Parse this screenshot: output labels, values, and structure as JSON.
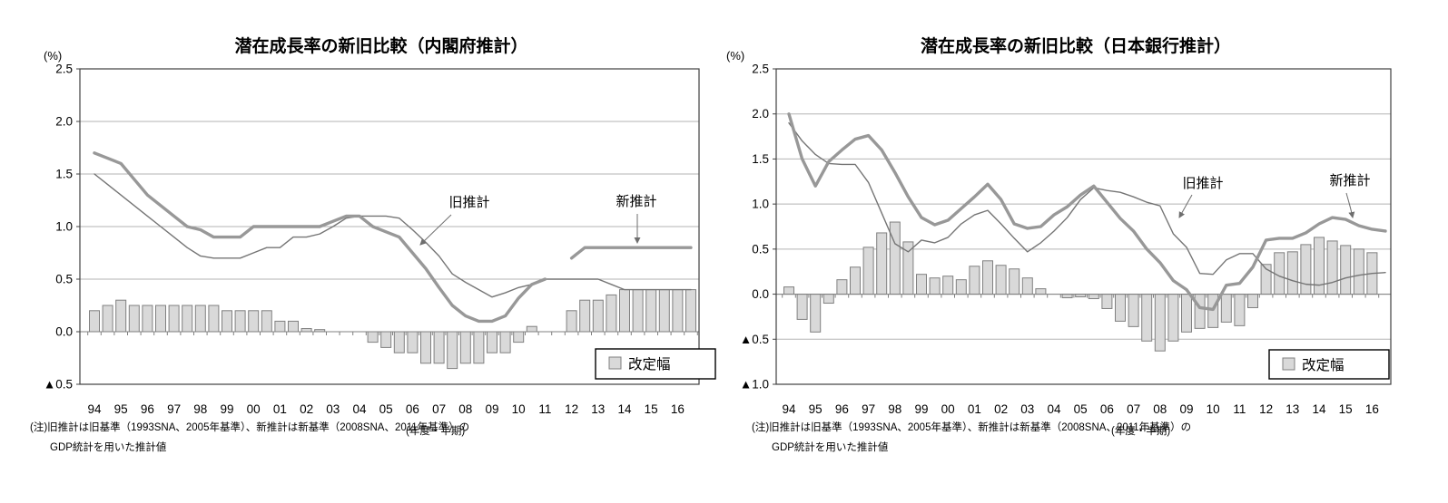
{
  "page": {
    "background": "#ffffff"
  },
  "chart_data": [
    {
      "type": "bar",
      "subtype": "combo-bar-line",
      "title": "潜在成長率の新旧比較（内閣府推計）",
      "unit_label": "(%)",
      "axis_note": "(年度・半期)",
      "note_line1": "(注)旧推計は旧基準（1993SNA、2005年基準）、新推計は新基準（2008SNA、2011年基準）の",
      "note_line2": "GDP統計を用いた推計値",
      "legend": {
        "label": "改定幅",
        "position": "bottom-right"
      },
      "ylim": [
        -0.5,
        2.5
      ],
      "ytick_step": 0.5,
      "ytick_labels": [
        "2.5",
        "2.0",
        "1.5",
        "1.0",
        "0.5",
        "0.0",
        "▲0.5"
      ],
      "x_year_labels": [
        "94",
        "95",
        "96",
        "97",
        "98",
        "99",
        "00",
        "01",
        "02",
        "03",
        "04",
        "05",
        "06",
        "07",
        "08",
        "09",
        "10",
        "11",
        "12",
        "13",
        "14",
        "15",
        "16"
      ],
      "periods_per_year": 2,
      "grid": true,
      "annotations": [
        {
          "label": "旧推計",
          "points_to": "old-estimate-line"
        },
        {
          "label": "新推計",
          "points_to": "new-estimate-line"
        }
      ],
      "series": [
        {
          "name": "改定幅",
          "type": "bar",
          "values": [
            0.2,
            0.25,
            0.3,
            0.25,
            0.25,
            0.25,
            0.25,
            0.25,
            0.25,
            0.25,
            0.2,
            0.2,
            0.2,
            0.2,
            0.1,
            0.1,
            0.03,
            0.02,
            0,
            0,
            0,
            -0.1,
            -0.15,
            -0.2,
            -0.2,
            -0.3,
            -0.3,
            -0.35,
            -0.3,
            -0.3,
            -0.2,
            -0.2,
            -0.1,
            0.05,
            0,
            0,
            0.2,
            0.3,
            0.3,
            0.35,
            0.4,
            0.4,
            0.4,
            0.4,
            0.4,
            0.4
          ]
        },
        {
          "name": "旧推計",
          "type": "line",
          "style": "thin",
          "values": [
            1.5,
            1.4,
            1.3,
            1.2,
            1.1,
            1.0,
            0.9,
            0.8,
            0.72,
            0.7,
            0.7,
            0.7,
            0.75,
            0.8,
            0.8,
            0.9,
            0.9,
            0.93,
            1.0,
            1.08,
            1.1,
            1.1,
            1.1,
            1.08,
            0.97,
            0.85,
            0.72,
            0.55,
            0.47,
            0.4,
            0.33,
            0.37,
            0.42,
            0.45,
            0.5,
            0.5,
            0.5,
            0.5,
            0.5,
            0.45,
            0.4,
            0.4,
            0.4,
            0.4,
            0.4,
            0.4
          ]
        },
        {
          "name": "新推計",
          "type": "line",
          "style": "thick",
          "values": [
            1.7,
            1.65,
            1.6,
            1.45,
            1.3,
            1.2,
            1.1,
            1.0,
            0.97,
            0.9,
            0.9,
            0.9,
            1.0,
            1.0,
            1.0,
            1.0,
            1.0,
            1.0,
            1.05,
            1.1,
            1.1,
            1.0,
            0.95,
            0.9,
            0.75,
            0.6,
            0.42,
            0.25,
            0.15,
            0.1,
            0.1,
            0.15,
            0.32,
            0.45,
            0.5,
            null,
            0.7,
            0.8,
            0.8,
            0.8,
            0.8,
            0.8,
            0.8,
            0.8,
            0.8,
            0.8
          ]
        }
      ],
      "colors": {
        "bar_fill": "#d9d9d9",
        "bar_stroke": "#808080",
        "line_old": "#757575",
        "line_new": "#989898",
        "grid": "#b3b3b3",
        "border": "#404040",
        "zero_axis": "#808080",
        "text": "#000000"
      }
    },
    {
      "type": "bar",
      "subtype": "combo-bar-line",
      "title": "潜在成長率の新旧比較（日本銀行推計）",
      "unit_label": "(%)",
      "axis_note": "(年度・半期)",
      "note_line1": "(注)旧推計は旧基準（1993SNA、2005年基準）、新推計は新基準（2008SNA、2011年基準）の",
      "note_line2": "GDP統計を用いた推計値",
      "legend": {
        "label": "改定幅",
        "position": "bottom-right"
      },
      "ylim": [
        -1.0,
        2.5
      ],
      "ytick_step": 0.5,
      "ytick_labels": [
        "2.5",
        "2.0",
        "1.5",
        "1.0",
        "0.5",
        "0.0",
        "▲0.5",
        "▲1.0"
      ],
      "x_year_labels": [
        "94",
        "95",
        "96",
        "97",
        "98",
        "99",
        "00",
        "01",
        "02",
        "03",
        "04",
        "05",
        "06",
        "07",
        "08",
        "09",
        "10",
        "11",
        "12",
        "13",
        "14",
        "15",
        "16"
      ],
      "periods_per_year": 2,
      "grid": true,
      "annotations": [
        {
          "label": "旧推計",
          "points_to": "old-estimate-line"
        },
        {
          "label": "新推計",
          "points_to": "new-estimate-line"
        }
      ],
      "series": [
        {
          "name": "改定幅",
          "type": "bar",
          "values": [
            0.08,
            -0.28,
            -0.42,
            -0.1,
            0.16,
            0.3,
            0.52,
            0.68,
            0.8,
            0.58,
            0.22,
            0.18,
            0.2,
            0.16,
            0.31,
            0.37,
            0.32,
            0.28,
            0.18,
            0.06,
            0,
            -0.04,
            -0.03,
            -0.05,
            -0.16,
            -0.3,
            -0.36,
            -0.52,
            -0.63,
            -0.52,
            -0.42,
            -0.38,
            -0.37,
            -0.31,
            -0.35,
            -0.15,
            0.33,
            0.46,
            0.47,
            0.55,
            0.63,
            0.59,
            0.54,
            0.5,
            0.46,
            null
          ]
        },
        {
          "name": "旧推計",
          "type": "line",
          "style": "thin",
          "values": [
            1.9,
            1.7,
            1.55,
            1.45,
            1.44,
            1.44,
            1.24,
            0.9,
            0.56,
            0.47,
            0.6,
            0.57,
            0.63,
            0.78,
            0.88,
            0.93,
            0.78,
            0.62,
            0.47,
            0.57,
            0.7,
            0.85,
            1.05,
            1.18,
            1.15,
            1.13,
            1.08,
            1.02,
            0.98,
            0.67,
            0.52,
            0.23,
            0.22,
            0.38,
            0.45,
            0.45,
            0.28,
            0.2,
            0.15,
            0.11,
            0.1,
            0.13,
            0.18,
            0.21,
            0.23,
            0.24
          ]
        },
        {
          "name": "新推計",
          "type": "line",
          "style": "thick",
          "values": [
            2.0,
            1.5,
            1.2,
            1.47,
            1.6,
            1.72,
            1.76,
            1.6,
            1.35,
            1.08,
            0.85,
            0.77,
            0.82,
            0.95,
            1.08,
            1.22,
            1.05,
            0.78,
            0.73,
            0.75,
            0.88,
            0.97,
            1.1,
            1.2,
            1.02,
            0.84,
            0.7,
            0.5,
            0.35,
            0.15,
            0.05,
            -0.15,
            -0.17,
            0.1,
            0.12,
            0.3,
            0.6,
            0.62,
            0.62,
            0.68,
            0.78,
            0.85,
            0.83,
            0.76,
            0.72,
            0.7
          ]
        }
      ],
      "colors": {
        "bar_fill": "#d9d9d9",
        "bar_stroke": "#808080",
        "line_old": "#757575",
        "line_new": "#989898",
        "grid": "#b3b3b3",
        "border": "#404040",
        "zero_axis": "#808080",
        "text": "#000000"
      }
    }
  ]
}
